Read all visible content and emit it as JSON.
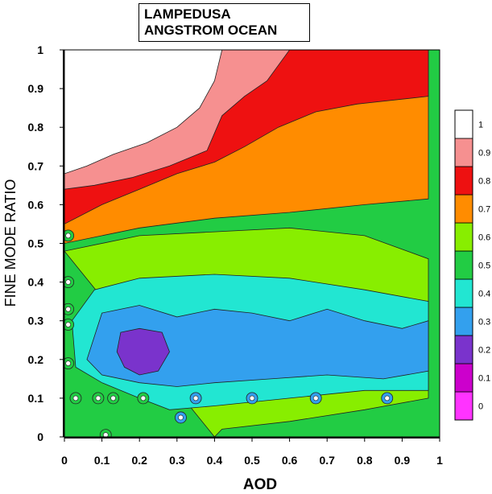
{
  "chart_data": {
    "type": "heatmap",
    "title": [
      "LAMPEDUSA",
      "ANGSTROM OCEAN"
    ],
    "xlabel": "AOD",
    "ylabel": "FINE MODE RATIO",
    "xlim": [
      0,
      1
    ],
    "ylim": [
      0,
      1
    ],
    "x_ticks": [
      "0",
      "0.1",
      "0.2",
      "0.3",
      "0.4",
      "0.5",
      "0.6",
      "0.7",
      "0.8",
      "0.9",
      "1"
    ],
    "y_ticks": [
      "0",
      "0.1",
      "0.2",
      "0.3",
      "0.4",
      "0.5",
      "0.6",
      "0.7",
      "0.8",
      "0.9",
      "1"
    ],
    "colorbar": {
      "levels": [
        "0",
        "0.1",
        "0.2",
        "0.3",
        "0.4",
        "0.5",
        "0.6",
        "0.7",
        "0.8",
        "0.9",
        "1"
      ],
      "colors": [
        "#ff33ff",
        "#cc00cc",
        "#7a33cc",
        "#33a0ee",
        "#22e6d2",
        "#22cc44",
        "#88ee00",
        "#ff8c00",
        "#ee1111",
        "#f69090",
        "#ffffff"
      ]
    },
    "contour_bands": [
      {
        "level": 0.6,
        "boundary": [
          [
            0.4,
            0.0
          ],
          [
            0.42,
            0.02
          ],
          [
            0.6,
            0.04
          ],
          [
            0.8,
            0.07
          ],
          [
            0.97,
            0.1
          ],
          [
            0.97,
            0.46
          ],
          [
            0.8,
            0.52
          ],
          [
            0.6,
            0.54
          ],
          [
            0.4,
            0.53
          ],
          [
            0.2,
            0.52
          ],
          [
            0.0,
            0.48
          ]
        ]
      },
      {
        "level": 0.7,
        "boundary": [
          [
            0.0,
            0.5
          ],
          [
            0.2,
            0.54
          ],
          [
            0.4,
            0.565
          ],
          [
            0.6,
            0.58
          ],
          [
            0.8,
            0.6
          ],
          [
            0.97,
            0.615
          ],
          [
            0.97,
            1.0
          ],
          [
            0.0,
            1.0
          ]
        ]
      },
      {
        "level": 0.8,
        "boundary": [
          [
            0.0,
            0.55
          ],
          [
            0.1,
            0.6
          ],
          [
            0.2,
            0.64
          ],
          [
            0.3,
            0.68
          ],
          [
            0.4,
            0.71
          ],
          [
            0.48,
            0.75
          ],
          [
            0.57,
            0.8
          ],
          [
            0.67,
            0.84
          ],
          [
            0.78,
            0.86
          ],
          [
            0.97,
            0.88
          ],
          [
            0.97,
            1.0
          ],
          [
            0.0,
            1.0
          ]
        ]
      },
      {
        "level": 0.9,
        "boundary": [
          [
            0.0,
            0.64
          ],
          [
            0.08,
            0.65
          ],
          [
            0.18,
            0.67
          ],
          [
            0.28,
            0.7
          ],
          [
            0.38,
            0.74
          ],
          [
            0.42,
            0.83
          ],
          [
            0.48,
            0.88
          ],
          [
            0.54,
            0.92
          ],
          [
            0.57,
            0.96
          ],
          [
            0.6,
            1.0
          ],
          [
            0.0,
            1.0
          ]
        ]
      },
      {
        "level": 1.0,
        "boundary": [
          [
            0.0,
            0.68
          ],
          [
            0.06,
            0.7
          ],
          [
            0.13,
            0.73
          ],
          [
            0.22,
            0.76
          ],
          [
            0.3,
            0.8
          ],
          [
            0.36,
            0.85
          ],
          [
            0.4,
            0.92
          ],
          [
            0.42,
            1.0
          ],
          [
            0.0,
            1.0
          ]
        ]
      },
      {
        "level": 0.4,
        "boundary": [
          [
            0.02,
            0.3
          ],
          [
            0.08,
            0.38
          ],
          [
            0.2,
            0.41
          ],
          [
            0.4,
            0.42
          ],
          [
            0.6,
            0.41
          ],
          [
            0.8,
            0.38
          ],
          [
            0.97,
            0.35
          ],
          [
            0.97,
            0.12
          ],
          [
            0.8,
            0.12
          ],
          [
            0.6,
            0.1
          ],
          [
            0.4,
            0.08
          ],
          [
            0.28,
            0.07
          ],
          [
            0.2,
            0.1
          ],
          [
            0.1,
            0.14
          ],
          [
            0.03,
            0.18
          ]
        ]
      },
      {
        "level": 0.3,
        "boundary": [
          [
            0.06,
            0.2
          ],
          [
            0.1,
            0.32
          ],
          [
            0.2,
            0.34
          ],
          [
            0.3,
            0.31
          ],
          [
            0.4,
            0.33
          ],
          [
            0.5,
            0.32
          ],
          [
            0.6,
            0.3
          ],
          [
            0.7,
            0.33
          ],
          [
            0.8,
            0.3
          ],
          [
            0.9,
            0.28
          ],
          [
            0.97,
            0.3
          ],
          [
            0.97,
            0.17
          ],
          [
            0.85,
            0.15
          ],
          [
            0.7,
            0.16
          ],
          [
            0.55,
            0.15
          ],
          [
            0.4,
            0.14
          ],
          [
            0.3,
            0.13
          ],
          [
            0.2,
            0.14
          ],
          [
            0.1,
            0.16
          ]
        ]
      },
      {
        "level": 0.2,
        "boundary": [
          [
            0.15,
            0.27
          ],
          [
            0.2,
            0.28
          ],
          [
            0.26,
            0.27
          ],
          [
            0.28,
            0.22
          ],
          [
            0.25,
            0.17
          ],
          [
            0.2,
            0.16
          ],
          [
            0.16,
            0.18
          ],
          [
            0.14,
            0.22
          ]
        ]
      }
    ]
  }
}
